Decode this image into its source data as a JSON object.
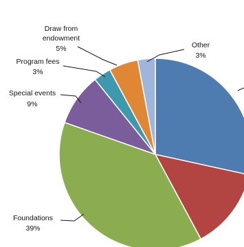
{
  "chart_data": {
    "type": "pie",
    "title": "",
    "start_angle_deg": 0,
    "direction": "clockwise",
    "slices": [
      {
        "key": "s1",
        "label": "",
        "pct_text": "",
        "value": 29,
        "color": "#4e7bb0"
      },
      {
        "key": "s2",
        "label": "",
        "pct_text": "",
        "value": 14,
        "color": "#b24442"
      },
      {
        "key": "foundations",
        "label": "Foundations",
        "pct_text": "39%",
        "value": 39,
        "color": "#8cad4f"
      },
      {
        "key": "special_events",
        "label": "Special events",
        "pct_text": "9%",
        "value": 9,
        "color": "#7b5d9c"
      },
      {
        "key": "program_fees",
        "label": "Program fees",
        "pct_text": "3%",
        "value": 3,
        "color": "#3e99ae"
      },
      {
        "key": "endowment",
        "label": "Draw from endowment",
        "label_lines": [
          "Draw from",
          "endowment"
        ],
        "pct_text": "5%",
        "value": 5,
        "color": "#e08735"
      },
      {
        "key": "other",
        "label": "Other",
        "pct_text": "3%",
        "value": 3,
        "color": "#9eb5dc"
      }
    ]
  }
}
